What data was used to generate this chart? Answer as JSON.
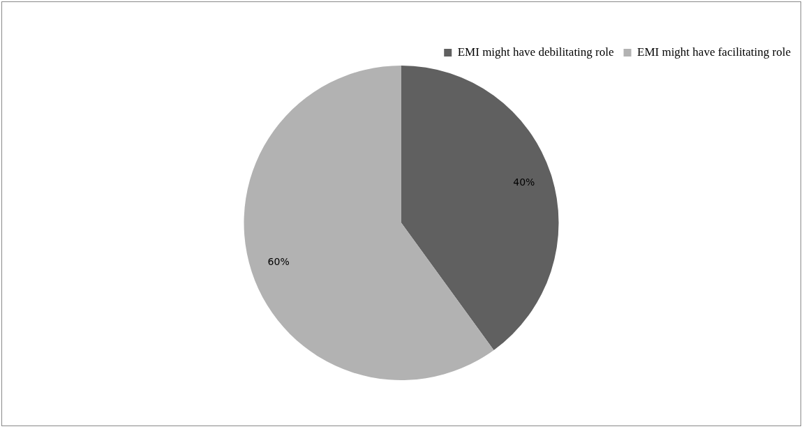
{
  "chart_data": {
    "type": "pie",
    "categories": [
      "EMI might have debilitating role",
      "EMI might have facilitating role"
    ],
    "values": [
      40,
      60
    ],
    "value_labels": [
      "40%",
      "60%"
    ],
    "colors": [
      "#606060",
      "#b2b2b2"
    ],
    "legend": "top right"
  }
}
